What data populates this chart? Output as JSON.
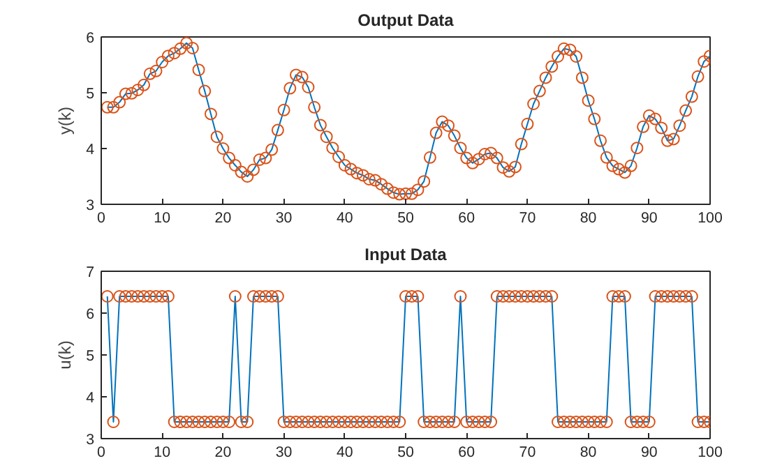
{
  "chart_data": [
    {
      "type": "line",
      "title": "Output Data",
      "ylabel": "y(k)",
      "xlim": [
        0,
        100
      ],
      "xticks": [
        0,
        10,
        20,
        30,
        40,
        50,
        60,
        70,
        80,
        90,
        100
      ],
      "ylim": [
        3,
        6
      ],
      "yticks": [
        3,
        4,
        5,
        6
      ],
      "x": [
        1,
        2,
        3,
        4,
        5,
        6,
        7,
        8,
        9,
        10,
        11,
        12,
        13,
        14,
        15,
        16,
        17,
        18,
        19,
        20,
        21,
        22,
        23,
        24,
        25,
        26,
        27,
        28,
        29,
        30,
        31,
        32,
        33,
        34,
        35,
        36,
        37,
        38,
        39,
        40,
        41,
        42,
        43,
        44,
        45,
        46,
        47,
        48,
        49,
        50,
        51,
        52,
        53,
        54,
        55,
        56,
        57,
        58,
        59,
        60,
        61,
        62,
        63,
        64,
        65,
        66,
        67,
        68,
        69,
        70,
        71,
        72,
        73,
        74,
        75,
        76,
        77,
        78,
        79,
        80,
        81,
        82,
        83,
        84,
        85,
        86,
        87,
        88,
        89,
        90,
        91,
        92,
        93,
        94,
        95,
        96,
        97,
        98,
        99,
        100
      ],
      "series": [
        {
          "marker": "none",
          "color": "#0072bd",
          "values": [
            4.74,
            4.74,
            4.83,
            4.98,
            4.99,
            5.05,
            5.14,
            5.34,
            5.39,
            5.55,
            5.66,
            5.71,
            5.79,
            5.89,
            5.8,
            5.41,
            5.03,
            4.62,
            4.21,
            4.0,
            3.83,
            3.7,
            3.58,
            3.5,
            3.62,
            3.8,
            3.83,
            3.98,
            4.33,
            4.69,
            5.08,
            5.32,
            5.28,
            5.1,
            4.74,
            4.42,
            4.21,
            4.01,
            3.85,
            3.7,
            3.63,
            3.56,
            3.52,
            3.45,
            3.43,
            3.36,
            3.28,
            3.21,
            3.18,
            3.19,
            3.19,
            3.26,
            3.41,
            3.84,
            4.28,
            4.48,
            4.41,
            4.23,
            4.01,
            3.83,
            3.74,
            3.81,
            3.9,
            3.92,
            3.83,
            3.66,
            3.59,
            3.67,
            4.08,
            4.44,
            4.8,
            5.03,
            5.27,
            5.47,
            5.65,
            5.79,
            5.77,
            5.65,
            5.27,
            4.86,
            4.53,
            4.14,
            3.84,
            3.69,
            3.63,
            3.57,
            3.69,
            4.01,
            4.39,
            4.59,
            4.53,
            4.37,
            4.14,
            4.17,
            4.41,
            4.68,
            4.93,
            5.29,
            5.56,
            5.66
          ]
        },
        {
          "type": "scatter",
          "marker": "circle",
          "color": "#d95319",
          "values": [
            4.74,
            4.74,
            4.83,
            4.98,
            4.99,
            5.05,
            5.14,
            5.34,
            5.39,
            5.55,
            5.66,
            5.71,
            5.79,
            5.89,
            5.8,
            5.41,
            5.03,
            4.62,
            4.21,
            4.0,
            3.83,
            3.7,
            3.58,
            3.5,
            3.62,
            3.8,
            3.83,
            3.98,
            4.33,
            4.69,
            5.08,
            5.32,
            5.28,
            5.1,
            4.74,
            4.42,
            4.21,
            4.01,
            3.85,
            3.7,
            3.63,
            3.56,
            3.52,
            3.45,
            3.43,
            3.36,
            3.28,
            3.21,
            3.18,
            3.19,
            3.19,
            3.26,
            3.41,
            3.84,
            4.28,
            4.48,
            4.41,
            4.23,
            4.01,
            3.83,
            3.74,
            3.81,
            3.9,
            3.92,
            3.83,
            3.66,
            3.59,
            3.67,
            4.08,
            4.44,
            4.8,
            5.03,
            5.27,
            5.47,
            5.65,
            5.79,
            5.77,
            5.65,
            5.27,
            4.86,
            4.53,
            4.14,
            3.84,
            3.69,
            3.63,
            3.57,
            3.69,
            4.01,
            4.39,
            4.59,
            4.53,
            4.37,
            4.14,
            4.17,
            4.41,
            4.68,
            4.93,
            5.29,
            5.56,
            5.66
          ]
        }
      ]
    },
    {
      "type": "line",
      "title": "Input Data",
      "ylabel": "u(k)",
      "xlim": [
        0,
        100
      ],
      "xticks": [
        0,
        10,
        20,
        30,
        40,
        50,
        60,
        70,
        80,
        90,
        100
      ],
      "ylim": [
        3,
        7
      ],
      "yticks": [
        3,
        4,
        5,
        6,
        7
      ],
      "x": [
        1,
        2,
        3,
        4,
        5,
        6,
        7,
        8,
        9,
        10,
        11,
        12,
        13,
        14,
        15,
        16,
        17,
        18,
        19,
        20,
        21,
        22,
        23,
        24,
        25,
        26,
        27,
        28,
        29,
        30,
        31,
        32,
        33,
        34,
        35,
        36,
        37,
        38,
        39,
        40,
        41,
        42,
        43,
        44,
        45,
        46,
        47,
        48,
        49,
        50,
        51,
        52,
        53,
        54,
        55,
        56,
        57,
        58,
        59,
        60,
        61,
        62,
        63,
        64,
        65,
        66,
        67,
        68,
        69,
        70,
        71,
        72,
        73,
        74,
        75,
        76,
        77,
        78,
        79,
        80,
        81,
        82,
        83,
        84,
        85,
        86,
        87,
        88,
        89,
        90,
        91,
        92,
        93,
        94,
        95,
        96,
        97,
        98,
        99,
        100
      ],
      "series": [
        {
          "marker": "none",
          "color": "#0072bd",
          "values": [
            6.4,
            3.4,
            6.4,
            6.4,
            6.4,
            6.4,
            6.4,
            6.4,
            6.4,
            6.4,
            6.4,
            3.4,
            3.4,
            3.4,
            3.4,
            3.4,
            3.4,
            3.4,
            3.4,
            3.4,
            3.4,
            6.4,
            3.4,
            3.4,
            6.4,
            6.4,
            6.4,
            6.4,
            6.4,
            3.4,
            3.4,
            3.4,
            3.4,
            3.4,
            3.4,
            3.4,
            3.4,
            3.4,
            3.4,
            3.4,
            3.4,
            3.4,
            3.4,
            3.4,
            3.4,
            3.4,
            3.4,
            3.4,
            3.4,
            6.4,
            6.4,
            6.4,
            3.4,
            3.4,
            3.4,
            3.4,
            3.4,
            3.4,
            6.4,
            3.4,
            3.4,
            3.4,
            3.4,
            3.4,
            6.4,
            6.4,
            6.4,
            6.4,
            6.4,
            6.4,
            6.4,
            6.4,
            6.4,
            6.4,
            3.4,
            3.4,
            3.4,
            3.4,
            3.4,
            3.4,
            3.4,
            3.4,
            3.4,
            6.4,
            6.4,
            6.4,
            3.4,
            3.4,
            3.4,
            3.4,
            6.4,
            6.4,
            6.4,
            6.4,
            6.4,
            6.4,
            6.4,
            3.4,
            3.4,
            3.4
          ]
        },
        {
          "type": "scatter",
          "marker": "circle",
          "color": "#d95319",
          "values": [
            6.4,
            3.4,
            6.4,
            6.4,
            6.4,
            6.4,
            6.4,
            6.4,
            6.4,
            6.4,
            6.4,
            3.4,
            3.4,
            3.4,
            3.4,
            3.4,
            3.4,
            3.4,
            3.4,
            3.4,
            3.4,
            6.4,
            3.4,
            3.4,
            6.4,
            6.4,
            6.4,
            6.4,
            6.4,
            3.4,
            3.4,
            3.4,
            3.4,
            3.4,
            3.4,
            3.4,
            3.4,
            3.4,
            3.4,
            3.4,
            3.4,
            3.4,
            3.4,
            3.4,
            3.4,
            3.4,
            3.4,
            3.4,
            3.4,
            6.4,
            6.4,
            6.4,
            3.4,
            3.4,
            3.4,
            3.4,
            3.4,
            3.4,
            6.4,
            3.4,
            3.4,
            3.4,
            3.4,
            3.4,
            6.4,
            6.4,
            6.4,
            6.4,
            6.4,
            6.4,
            6.4,
            6.4,
            6.4,
            6.4,
            3.4,
            3.4,
            3.4,
            3.4,
            3.4,
            3.4,
            3.4,
            3.4,
            3.4,
            6.4,
            6.4,
            6.4,
            3.4,
            3.4,
            3.4,
            3.4,
            6.4,
            6.4,
            6.4,
            6.4,
            6.4,
            6.4,
            6.4,
            3.4,
            3.4,
            3.4
          ]
        }
      ]
    }
  ]
}
